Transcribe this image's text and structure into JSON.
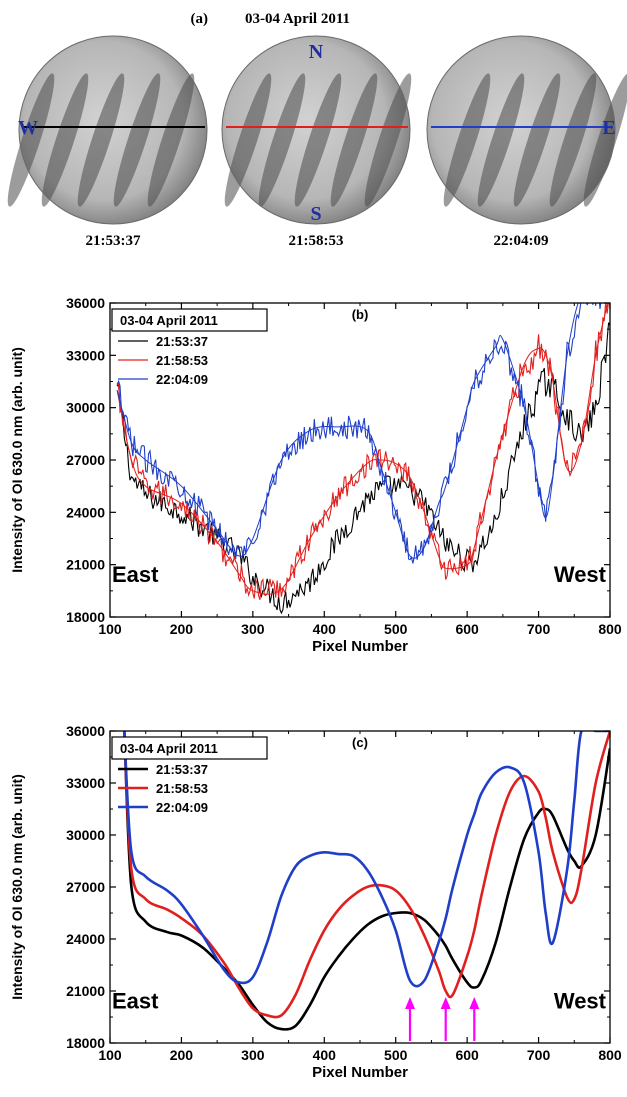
{
  "panel_a": {
    "label": "(a)",
    "date": "03-04 April 2011",
    "direction_north": "N",
    "direction_south": "S",
    "direction_west": "W",
    "direction_east": "E",
    "frames": [
      {
        "time": "21:53:37",
        "line_color": "#000000"
      },
      {
        "time": "21:58:53",
        "line_color": "#e0201e"
      },
      {
        "time": "22:04:09",
        "line_color": "#1f3fc8"
      }
    ]
  },
  "chart_data": [
    {
      "panel": "(b)",
      "type": "line",
      "xlabel": "Pixel Number",
      "ylabel": "Intensity of OI 630.0 nm (arb. unit)",
      "xlim": [
        100,
        800
      ],
      "ylim": [
        18000,
        36000
      ],
      "xticks": [
        100,
        200,
        300,
        400,
        500,
        600,
        700,
        800
      ],
      "yticks": [
        18000,
        21000,
        24000,
        27000,
        30000,
        33000,
        36000
      ],
      "legend_title": "03-04 April 2011",
      "annotations": [
        "East",
        "West"
      ],
      "noisy": true,
      "smoothed_overlay": true,
      "x": [
        110,
        130,
        150,
        200,
        250,
        280,
        300,
        340,
        380,
        420,
        460,
        480,
        500,
        520,
        540,
        560,
        570,
        600,
        610,
        640,
        650,
        680,
        700,
        710,
        720,
        740,
        760,
        780,
        800
      ],
      "series": [
        {
          "name": "21:53:37",
          "color": "#000000",
          "values": [
            31000,
            26000,
            25000,
            24000,
            22500,
            21600,
            20300,
            18800,
            20000,
            22500,
            24800,
            25400,
            25500,
            25300,
            24500,
            23000,
            22200,
            21200,
            21200,
            23500,
            25000,
            29000,
            31000,
            31500,
            31200,
            29500,
            28200,
            30000,
            34500
          ]
        },
        {
          "name": "21:58:53",
          "color": "#e0201e",
          "values": [
            31000,
            27000,
            25500,
            24500,
            22300,
            20500,
            19500,
            19600,
            22500,
            25000,
            26800,
            27000,
            26800,
            26000,
            24000,
            21500,
            20800,
            21000,
            22000,
            27000,
            28500,
            32500,
            33400,
            33000,
            31500,
            26500,
            28000,
            33000,
            36500
          ]
        },
        {
          "name": "22:04:09",
          "color": "#1f3fc8",
          "values": [
            31000,
            28000,
            27000,
            25500,
            23000,
            21500,
            22500,
            27000,
            28700,
            28900,
            28700,
            26500,
            24000,
            21500,
            22000,
            24500,
            25500,
            30000,
            31500,
            33500,
            33900,
            30000,
            25500,
            23700,
            26000,
            33000,
            36500,
            36500,
            36500
          ]
        }
      ]
    },
    {
      "panel": "(c)",
      "type": "line",
      "xlabel": "Pixel Number",
      "ylabel": "Intensity of OI 630.0 nm (arb. unit)",
      "xlim": [
        100,
        800
      ],
      "ylim": [
        18000,
        36000
      ],
      "xticks": [
        100,
        200,
        300,
        400,
        500,
        600,
        700,
        800
      ],
      "yticks": [
        18000,
        21000,
        24000,
        27000,
        30000,
        33000,
        36000
      ],
      "legend_title": "03-04 April 2011",
      "annotations": [
        "East",
        "West"
      ],
      "arrow_color": "#ff00ff",
      "arrow_x": [
        520,
        570,
        610
      ],
      "x": [
        120,
        130,
        150,
        180,
        200,
        230,
        260,
        280,
        300,
        320,
        340,
        360,
        380,
        400,
        420,
        440,
        460,
        480,
        500,
        520,
        540,
        560,
        570,
        580,
        600,
        610,
        620,
        640,
        660,
        680,
        700,
        710,
        720,
        740,
        750,
        760,
        780,
        800
      ],
      "series": [
        {
          "name": "21:53:37",
          "color": "#000000",
          "values": [
            36000,
            27000,
            25000,
            24400,
            24200,
            23500,
            22300,
            21400,
            20200,
            19200,
            18800,
            19000,
            20200,
            21800,
            23000,
            24000,
            24800,
            25300,
            25500,
            25500,
            25100,
            24200,
            23600,
            22800,
            21500,
            21200,
            21600,
            23800,
            27000,
            29800,
            31300,
            31500,
            31100,
            29200,
            28500,
            28200,
            30000,
            35000
          ]
        },
        {
          "name": "21:58:53",
          "color": "#e0201e",
          "values": [
            36000,
            28000,
            26300,
            25700,
            25200,
            24200,
            22600,
            21200,
            20000,
            19600,
            19600,
            20800,
            22800,
            24500,
            25700,
            26500,
            27000,
            27100,
            26800,
            25800,
            24200,
            22200,
            21000,
            20800,
            23000,
            24500,
            26500,
            30000,
            32500,
            33400,
            32500,
            31000,
            29000,
            26400,
            26300,
            28000,
            33000,
            36000
          ]
        },
        {
          "name": "22:04:09",
          "color": "#1f3fc8",
          "values": [
            36000,
            29000,
            27600,
            26800,
            26000,
            24200,
            22200,
            21500,
            21800,
            23800,
            26500,
            28200,
            28800,
            29000,
            28900,
            28800,
            28000,
            26500,
            24500,
            21600,
            21600,
            23800,
            25200,
            27000,
            30000,
            31200,
            32400,
            33600,
            33900,
            33000,
            29000,
            25500,
            23800,
            28000,
            32000,
            36000,
            36000,
            36000
          ]
        }
      ]
    }
  ]
}
